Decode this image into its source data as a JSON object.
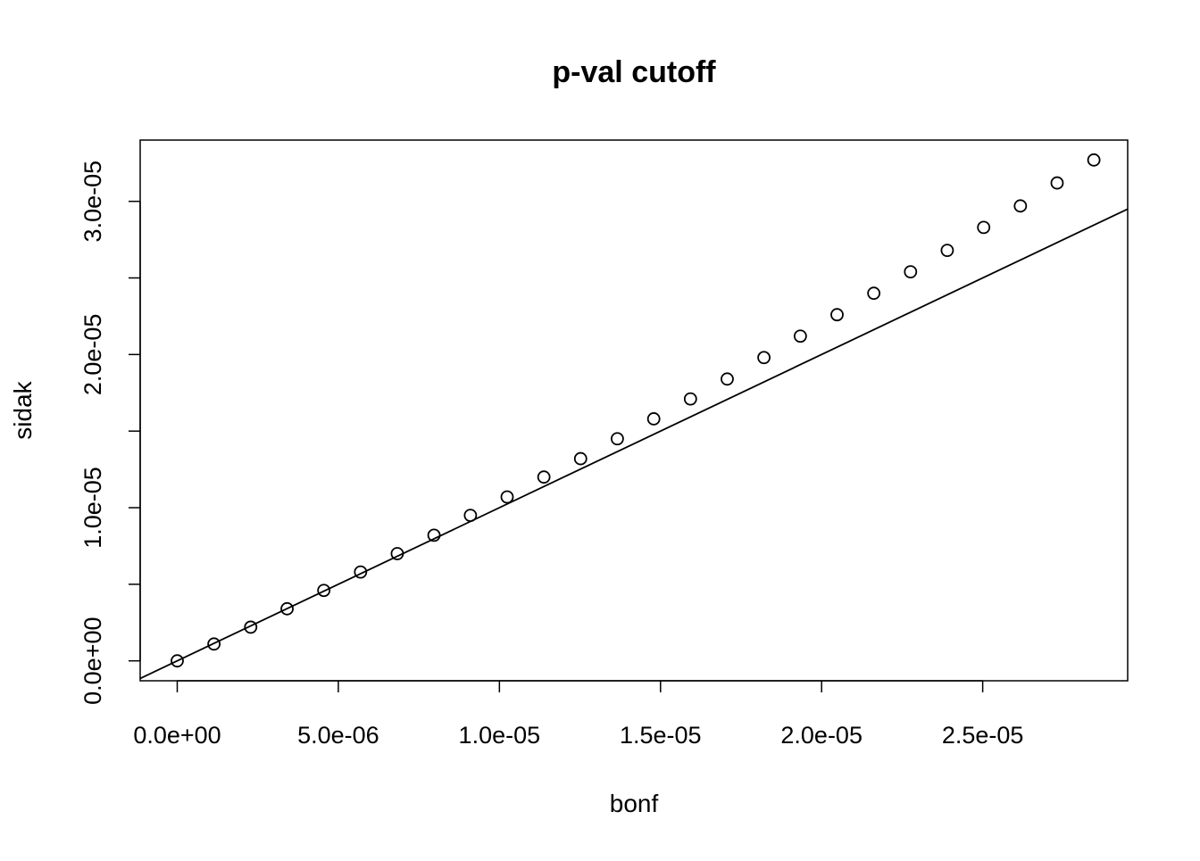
{
  "chart_data": {
    "type": "scatter",
    "title": "p-val cutoff",
    "xlabel": "bonf",
    "ylabel": "sidak",
    "xlim": [
      -1.15e-06,
      2.95e-05
    ],
    "ylim": [
      -1.3e-06,
      3.4e-05
    ],
    "x_ticks": [
      {
        "value": 0.0,
        "label": "0.0e+00"
      },
      {
        "value": 5e-06,
        "label": "5.0e-06"
      },
      {
        "value": 1e-05,
        "label": "1.0e-05"
      },
      {
        "value": 1.5e-05,
        "label": "1.5e-05"
      },
      {
        "value": 2e-05,
        "label": "2.0e-05"
      },
      {
        "value": 2.5e-05,
        "label": "2.5e-05"
      }
    ],
    "y_ticks": [
      {
        "value": 0.0,
        "label": "0.0e+00"
      },
      {
        "value": 5e-06,
        "label": ""
      },
      {
        "value": 1e-05,
        "label": "1.0e-05"
      },
      {
        "value": 1.5e-05,
        "label": ""
      },
      {
        "value": 2e-05,
        "label": "2.0e-05"
      },
      {
        "value": 2.5e-05,
        "label": ""
      },
      {
        "value": 3e-05,
        "label": "3.0e-05"
      }
    ],
    "grid": false,
    "series": [
      {
        "marker": "open-circle",
        "x": [
          0.0,
          1.14e-06,
          2.28e-06,
          3.41e-06,
          4.55e-06,
          5.69e-06,
          6.83e-06,
          7.97e-06,
          9.1e-06,
          1.024e-05,
          1.138e-05,
          1.252e-05,
          1.366e-05,
          1.479e-05,
          1.593e-05,
          1.707e-05,
          1.821e-05,
          1.934e-05,
          2.048e-05,
          2.162e-05,
          2.276e-05,
          2.39e-05,
          2.503e-05,
          2.617e-05,
          2.731e-05,
          2.845e-05
        ],
        "y": [
          0.0,
          1.1e-06,
          2.2e-06,
          3.4e-06,
          4.6e-06,
          5.8e-06,
          7e-06,
          8.2e-06,
          9.5e-06,
          1.07e-05,
          1.2e-05,
          1.32e-05,
          1.45e-05,
          1.58e-05,
          1.71e-05,
          1.84e-05,
          1.98e-05,
          2.12e-05,
          2.26e-05,
          2.4e-05,
          2.54e-05,
          2.68e-05,
          2.83e-05,
          2.97e-05,
          3.12e-05,
          3.27e-05
        ]
      }
    ],
    "reference_line": {
      "type": "abline",
      "intercept": 0,
      "slope": 1
    }
  }
}
